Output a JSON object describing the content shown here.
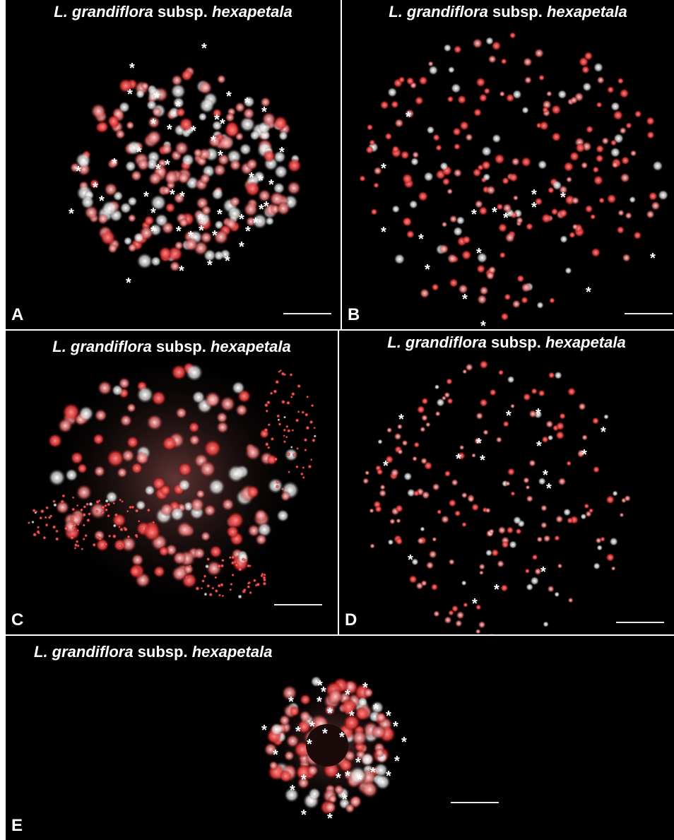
{
  "figure": {
    "panels": [
      {
        "letter": "A",
        "title": {
          "genus": "L. grandiflora",
          "rank": "subsp.",
          "epithet": "hexapetala"
        }
      },
      {
        "letter": "B",
        "title": {
          "genus": "L. grandiflora",
          "rank": "subsp.",
          "epithet": "hexapetala"
        }
      },
      {
        "letter": "C",
        "title": {
          "genus": "L. grandiflora",
          "rank": "subsp.",
          "epithet": "hexapetala"
        }
      },
      {
        "letter": "D",
        "title": {
          "genus": "L. grandiflora",
          "rank": "subsp.",
          "epithet": "hexapetala"
        }
      },
      {
        "letter": "E",
        "title": {
          "genus": "L. grandiflora",
          "rank": "subsp.",
          "epithet": "hexapetala"
        }
      }
    ],
    "marker_symbol": "*",
    "colors": {
      "background": "#000000",
      "signal_red": "#e23a3a",
      "chromatin_white": "#e6e6e6",
      "text": "#ffffff",
      "divider": "#ffffff"
    }
  }
}
